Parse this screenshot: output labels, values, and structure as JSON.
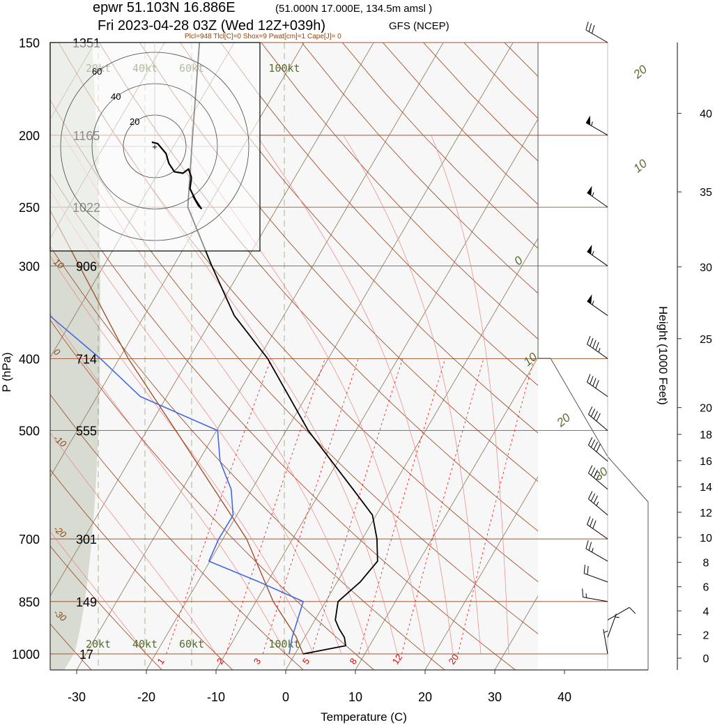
{
  "header": {
    "station_line": "epwr 51.103N 16.886E",
    "grid_point": "(51.000N 17.000E, 134.5m amsl )",
    "time_line": "Fri 2023-04-28 03Z (Wed 12Z+039h)",
    "model": "GFS (NCEP)",
    "parcel_params": "Plcl=948 Tlcl[C]=0 Shox=9 Pwat[cm]=1 Cape[J]= 0"
  },
  "chart_data": {
    "type": "skew-t log-p sounding",
    "xlabel": "Temperature (C)",
    "ylabel": "P (hPa)",
    "y2label": "Height (1000 Feet)",
    "x_ticks": [
      "-30",
      "-20",
      "-10",
      "0",
      "10",
      "20",
      "30",
      "40"
    ],
    "pressure_levels": [
      {
        "p": 150,
        "label": "150",
        "height_m": "1351"
      },
      {
        "p": 200,
        "label": "200",
        "height_m": "1165"
      },
      {
        "p": 250,
        "label": "250",
        "height_m": "1022"
      },
      {
        "p": 300,
        "label": "300",
        "height_m": "906"
      },
      {
        "p": 400,
        "label": "400",
        "height_m": "714"
      },
      {
        "p": 500,
        "label": "500",
        "height_m": "555"
      },
      {
        "p": 700,
        "label": "700",
        "height_m": "301"
      },
      {
        "p": 850,
        "label": "850",
        "height_m": "149"
      },
      {
        "p": 1000,
        "label": "1000",
        "height_m": "17"
      }
    ],
    "height_ticks_kft": [
      "0",
      "2",
      "4",
      "6",
      "8",
      "10",
      "12",
      "14",
      "16",
      "18",
      "20",
      "25",
      "30",
      "35",
      "40"
    ],
    "isotherm_labels": [
      {
        "t": 20,
        "text": "20",
        "p": 168
      },
      {
        "t": 10,
        "text": "10",
        "p": 225
      },
      {
        "t": 0,
        "text": "0",
        "p": 300
      },
      {
        "t": 10,
        "text": "10",
        "p": 410
      },
      {
        "t": 20,
        "text": "20",
        "p": 495
      },
      {
        "t": 30,
        "text": "30",
        "p": 585
      }
    ],
    "mixing_ratio_labels": [
      "1",
      "2",
      "3",
      "5",
      "8",
      "12",
      "20"
    ],
    "mixing_ratio_values": [
      1,
      2,
      3,
      5,
      8,
      12,
      20
    ],
    "dry_adiabat_labels": [
      "10",
      "0",
      "-10",
      "-20",
      "-30"
    ],
    "temperature_profile": [
      {
        "p": 1000,
        "t": 2.5
      },
      {
        "p": 975,
        "t": 7.9
      },
      {
        "p": 950,
        "t": 7.0
      },
      {
        "p": 925,
        "t": 5.5
      },
      {
        "p": 900,
        "t": 4.2
      },
      {
        "p": 850,
        "t": 3.0
      },
      {
        "p": 800,
        "t": 4.5
      },
      {
        "p": 750,
        "t": 5.2
      },
      {
        "p": 700,
        "t": 3.2
      },
      {
        "p": 650,
        "t": 0.5
      },
      {
        "p": 600,
        "t": -4.5
      },
      {
        "p": 500,
        "t": -16.0
      },
      {
        "p": 400,
        "t": -28.0
      },
      {
        "p": 350,
        "t": -36.5
      },
      {
        "p": 300,
        "t": -44.0
      },
      {
        "p": 250,
        "t": -52.5
      },
      {
        "p": 200,
        "t": -58.0
      },
      {
        "p": 150,
        "t": -65.0
      }
    ],
    "dewpoint_profile": [
      {
        "p": 1000,
        "t": 0.5
      },
      {
        "p": 950,
        "t": -0.5
      },
      {
        "p": 850,
        "t": -2.0
      },
      {
        "p": 800,
        "t": -10.0
      },
      {
        "p": 750,
        "t": -19.0
      },
      {
        "p": 700,
        "t": -19.5
      },
      {
        "p": 650,
        "t": -19.5
      },
      {
        "p": 600,
        "t": -22.0
      },
      {
        "p": 550,
        "t": -26.0
      },
      {
        "p": 500,
        "t": -29.0
      },
      {
        "p": 450,
        "t": -43.0
      },
      {
        "p": 400,
        "t": -52.0
      },
      {
        "p": 350,
        "t": -63.0
      },
      {
        "p": 300,
        "t": -73.0
      },
      {
        "p": 250,
        "t": -77.0
      },
      {
        "p": 200,
        "t": -86.0
      },
      {
        "p": 150,
        "t": -94.0
      }
    ],
    "parcel_path": [
      {
        "p": 1000,
        "t": 2.5
      },
      {
        "p": 948,
        "t": 0.0
      },
      {
        "p": 850,
        "t": -6.3
      },
      {
        "p": 700,
        "t": -15.5
      },
      {
        "p": 500,
        "t": -35.0
      },
      {
        "p": 400,
        "t": -48.0
      },
      {
        "p": 300,
        "t": -63.0
      },
      {
        "p": 250,
        "t": -72.5
      },
      {
        "p": 200,
        "t": -83.0
      },
      {
        "p": 150,
        "t": -96.0
      }
    ],
    "wind_barbs": [
      {
        "p": 1000,
        "dir": 350,
        "spd": 5
      },
      {
        "p": 950,
        "dir": 20,
        "spd": 5
      },
      {
        "p": 900,
        "dir": 60,
        "spd": 10
      },
      {
        "p": 850,
        "dir": 280,
        "spd": 15
      },
      {
        "p": 800,
        "dir": 290,
        "spd": 20
      },
      {
        "p": 750,
        "dir": 300,
        "spd": 25
      },
      {
        "p": 700,
        "dir": 305,
        "spd": 30
      },
      {
        "p": 650,
        "dir": 310,
        "spd": 35
      },
      {
        "p": 600,
        "dir": 310,
        "spd": 35
      },
      {
        "p": 550,
        "dir": 310,
        "spd": 40
      },
      {
        "p": 500,
        "dir": 310,
        "spd": 40
      },
      {
        "p": 450,
        "dir": 305,
        "spd": 40
      },
      {
        "p": 400,
        "dir": 305,
        "spd": 45
      },
      {
        "p": 350,
        "dir": 305,
        "spd": 55
      },
      {
        "p": 300,
        "dir": 305,
        "spd": 55
      },
      {
        "p": 250,
        "dir": 305,
        "spd": 55
      },
      {
        "p": 200,
        "dir": 300,
        "spd": 55
      },
      {
        "p": 150,
        "dir": 300,
        "spd": 30
      }
    ],
    "hodograph": {
      "ring_labels": [
        "20",
        "40",
        "60"
      ],
      "kt_labels": [
        "20kt",
        "40kt",
        "60kt",
        "100kt"
      ],
      "points": [
        {
          "u": -2,
          "v": 3
        },
        {
          "u": 2,
          "v": 2
        },
        {
          "u": 8,
          "v": -5
        },
        {
          "u": 10,
          "v": -12
        },
        {
          "u": 14,
          "v": -18
        },
        {
          "u": 20,
          "v": -19
        },
        {
          "u": 24,
          "v": -16
        },
        {
          "u": 26,
          "v": -22
        },
        {
          "u": 25,
          "v": -30
        },
        {
          "u": 29,
          "v": -38
        },
        {
          "u": 33,
          "v": -44
        },
        {
          "u": 31,
          "v": -42
        },
        {
          "u": 27,
          "v": -35
        }
      ]
    },
    "colors": {
      "temperature": "#000000",
      "dewpoint": "#4169e1",
      "isotherm": "#8b7355",
      "dry_adiabat": "#a0522d",
      "moist_adiabat": "#f08080",
      "mixing_ratio": "#ff0000",
      "shading": "#d3d7cc",
      "background": "#f7f7f7"
    }
  }
}
